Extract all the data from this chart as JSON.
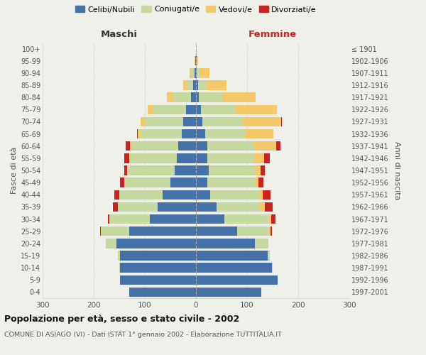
{
  "age_groups": [
    "0-4",
    "5-9",
    "10-14",
    "15-19",
    "20-24",
    "25-29",
    "30-34",
    "35-39",
    "40-44",
    "45-49",
    "50-54",
    "55-59",
    "60-64",
    "65-69",
    "70-74",
    "75-79",
    "80-84",
    "85-89",
    "90-94",
    "95-99",
    "100+"
  ],
  "birth_years": [
    "1997-2001",
    "1992-1996",
    "1987-1991",
    "1982-1986",
    "1977-1981",
    "1972-1976",
    "1967-1971",
    "1962-1966",
    "1957-1961",
    "1952-1956",
    "1947-1951",
    "1942-1946",
    "1937-1941",
    "1932-1936",
    "1927-1931",
    "1922-1926",
    "1917-1921",
    "1912-1916",
    "1907-1911",
    "1902-1906",
    "≤ 1901"
  ],
  "maschi": {
    "celibi": [
      130,
      148,
      148,
      148,
      155,
      130,
      90,
      75,
      65,
      50,
      42,
      38,
      35,
      28,
      25,
      20,
      10,
      5,
      3,
      1,
      0
    ],
    "coniugati": [
      0,
      1,
      2,
      5,
      20,
      55,
      80,
      78,
      85,
      90,
      92,
      90,
      90,
      80,
      75,
      65,
      35,
      12,
      5,
      1,
      0
    ],
    "vedovi": [
      0,
      0,
      0,
      0,
      1,
      1,
      0,
      0,
      0,
      0,
      1,
      2,
      4,
      6,
      8,
      10,
      12,
      8,
      4,
      1,
      0
    ],
    "divorziati": [
      0,
      0,
      0,
      0,
      1,
      2,
      2,
      10,
      10,
      8,
      5,
      10,
      8,
      1,
      0,
      0,
      0,
      0,
      0,
      0,
      0
    ]
  },
  "femmine": {
    "nubili": [
      128,
      160,
      148,
      140,
      115,
      80,
      55,
      40,
      28,
      22,
      25,
      22,
      22,
      18,
      12,
      10,
      6,
      4,
      2,
      1,
      0
    ],
    "coniugate": [
      0,
      0,
      2,
      5,
      25,
      65,
      90,
      85,
      95,
      95,
      92,
      90,
      90,
      78,
      80,
      68,
      45,
      18,
      7,
      1,
      0
    ],
    "vedove": [
      0,
      0,
      0,
      0,
      1,
      1,
      2,
      10,
      8,
      5,
      10,
      22,
      45,
      55,
      75,
      80,
      65,
      38,
      18,
      2,
      0
    ],
    "divorziate": [
      0,
      0,
      0,
      0,
      1,
      2,
      8,
      15,
      15,
      10,
      8,
      10,
      8,
      1,
      1,
      1,
      0,
      0,
      0,
      0,
      0
    ]
  },
  "colors": {
    "celibi_nubili": "#4472a8",
    "coniugati": "#c5d9a0",
    "vedovi": "#f5c96a",
    "divorziati": "#cc2222"
  },
  "title": "Popolazione per età, sesso e stato civile - 2002",
  "subtitle": "COMUNE DI ASIAGO (VI) - Dati ISTAT 1° gennaio 2002 - Elaborazione TUTTITALIA.IT",
  "xlabel_left": "Maschi",
  "xlabel_right": "Femmine",
  "ylabel_left": "Fasce di età",
  "ylabel_right": "Anni di nascita",
  "xlim": 300,
  "legend_labels": [
    "Celibi/Nubili",
    "Coniugati/e",
    "Vedovi/e",
    "Divorziati/e"
  ],
  "background_color": "#f0f0eb"
}
